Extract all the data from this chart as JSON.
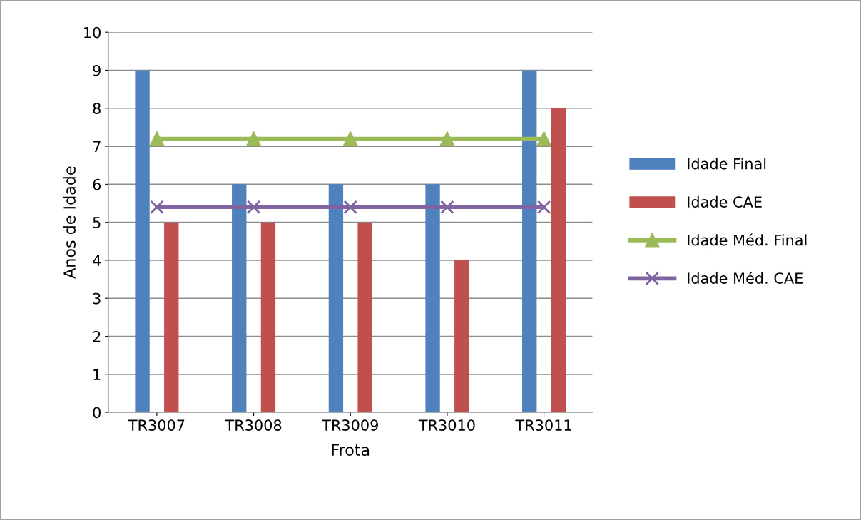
{
  "chart_data": {
    "type": "bar",
    "xlabel": "Frota",
    "ylabel": "Anos de Idade",
    "categories": [
      "TR3007",
      "TR3008",
      "TR3009",
      "TR3010",
      "TR3011"
    ],
    "series": [
      {
        "name": "Idade Final",
        "color": "#4f81bd",
        "values": [
          9,
          6,
          6,
          6,
          9
        ]
      },
      {
        "name": "Idade CAE",
        "color": "#c0504d",
        "values": [
          5,
          5,
          5,
          4,
          8
        ]
      },
      {
        "name": "Idade Méd. Final",
        "type": "line",
        "marker": "triangle",
        "color": "#9bbb59",
        "values": [
          7.2,
          7.2,
          7.2,
          7.2,
          7.2
        ]
      },
      {
        "name": "Idade Méd. CAE",
        "type": "line",
        "marker": "cross",
        "color": "#8064a2",
        "values": [
          5.4,
          5.4,
          5.4,
          5.4,
          5.4
        ]
      }
    ],
    "ylim": [
      0,
      10
    ],
    "yticks": [
      0,
      1,
      2,
      3,
      4,
      5,
      6,
      7,
      8,
      9,
      10
    ],
    "grid": "y",
    "legend": "right"
  }
}
